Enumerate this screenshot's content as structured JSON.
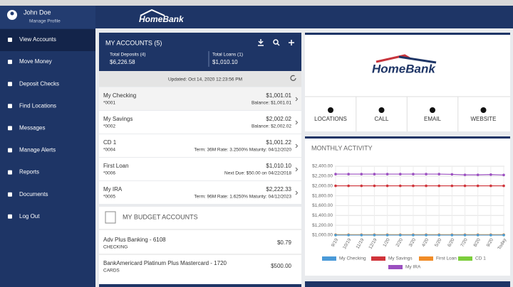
{
  "sidebar": {
    "user_name": "John Doe",
    "manage_profile": "Manage Profile",
    "menu": [
      "View Accounts",
      "Move Money",
      "Deposit Checks",
      "Find Locations",
      "Messages",
      "Manage Alerts",
      "Reports",
      "Documents",
      "Log Out"
    ]
  },
  "header": {
    "logo": "HomeBank"
  },
  "accounts": {
    "title": "MY ACCOUNTS (5)",
    "total_deposits_label": "Total Deposits (4)",
    "total_deposits": "$6,226.58",
    "total_loans_label": "Total Loans (1)",
    "total_loans": "$1,010.10",
    "updated": "Updated: Oct 14, 2020 12:23:56 PM",
    "rows": [
      {
        "name": "My Checking",
        "number": "*0001",
        "amount": "$1,001.01",
        "detail": "Balance: $1,001.01"
      },
      {
        "name": "My Savings",
        "number": "*0002",
        "amount": "$2,002.02",
        "detail": "Balance: $2,002.02"
      },
      {
        "name": "CD 1",
        "number": "*0004",
        "amount": "$1,001.22",
        "detail": "Term: 36M  Rate: 3.2500%  Maturity: 04/12/2020"
      },
      {
        "name": "First Loan",
        "number": "*0006",
        "amount": "$1,010.10",
        "detail": "Next Due: $50.00 on 04/22/2018"
      },
      {
        "name": "My IRA",
        "number": "*0005",
        "amount": "$2,222.33",
        "detail": "Term: 96M  Rate: 1.6250%  Maturity: 04/12/2023"
      }
    ]
  },
  "budget": {
    "title": "MY BUDGET ACCOUNTS",
    "rows": [
      {
        "name": "Adv Plus Banking - 6108",
        "type": "CHECKING",
        "amount": "$0.79"
      },
      {
        "name": "BankAmericard Platinum Plus Mastercard - 1720",
        "type": "CARDS",
        "amount": "$500.00"
      }
    ]
  },
  "quick_links": [
    "LOCATIONS",
    "CALL",
    "EMAIL",
    "WEBSITE"
  ],
  "chart_data": {
    "type": "line",
    "title": "MONTHLY ACTIVITY",
    "categories": [
      "9/19",
      "10/19",
      "11/19",
      "12/19",
      "1/20",
      "2/20",
      "3/20",
      "4/20",
      "5/20",
      "6/20",
      "7/20",
      "8/20",
      "9/20",
      "Today"
    ],
    "ylim": [
      1000,
      2400
    ],
    "yticks": [
      {
        "value": 1000,
        "label": "$1,000.00"
      },
      {
        "value": 1200,
        "label": "$1,200.00"
      },
      {
        "value": 1400,
        "label": "$1,400.00"
      },
      {
        "value": 1600,
        "label": "$1,600.00"
      },
      {
        "value": 1800,
        "label": "$1,800.00"
      },
      {
        "value": 2000,
        "label": "$2,000.00"
      },
      {
        "value": 2200,
        "label": "$2,200.00"
      },
      {
        "value": 2400,
        "label": "$2,400.00"
      }
    ],
    "grid": true,
    "series": [
      {
        "name": "My Checking",
        "color": "#4a9ad8",
        "values": [
          1001.01,
          1001.01,
          1001.01,
          1001.01,
          1001.01,
          1001.01,
          1001.01,
          1001.01,
          1001.01,
          1001.01,
          1001.01,
          1001.01,
          1001.01,
          1001.01
        ]
      },
      {
        "name": "My Savings",
        "color": "#d0343a",
        "values": [
          2002.02,
          2002.02,
          2002.02,
          2002.02,
          2002.02,
          2002.02,
          2002.02,
          2002.02,
          2002.02,
          2002.02,
          2002.02,
          2002.02,
          2002.02,
          2002.02
        ]
      },
      {
        "name": "First Loan",
        "color": "#f08c28",
        "values": [
          1010.1,
          1010.1,
          1010.1,
          1010.1,
          1010.1,
          1010.1,
          1010.1,
          1010.1,
          1010.1,
          1010.1,
          1010.1,
          1010.1,
          1010.1,
          1010.1
        ]
      },
      {
        "name": "CD 1",
        "color": "#7ccd3c",
        "values": [
          1001.22,
          1001.22,
          1001.22,
          1001.22,
          1001.22,
          1001.22,
          1001.22,
          1001.22,
          1001.22,
          1001.22,
          1001.22,
          1001.22,
          1001.22,
          1001.22
        ]
      },
      {
        "name": "My IRA",
        "color": "#9b4fc0",
        "values": [
          2240,
          2240,
          2240,
          2240,
          2240,
          2240,
          2240,
          2240,
          2240,
          2235,
          2225,
          2225,
          2230,
          2222.33
        ]
      }
    ]
  }
}
